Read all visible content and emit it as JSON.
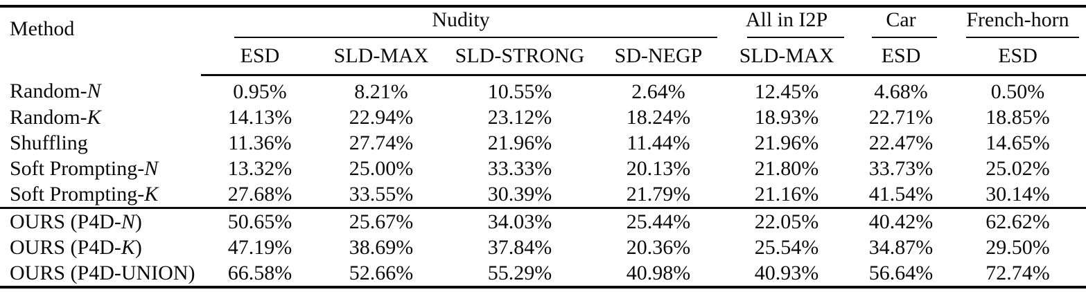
{
  "table": {
    "method_header": "Method",
    "groups": [
      {
        "label": "Nudity",
        "colspan": 4
      },
      {
        "label": "All in I2P",
        "colspan": 1
      },
      {
        "label": "Car",
        "colspan": 1
      },
      {
        "label": "French-horn",
        "colspan": 1
      }
    ],
    "sub_headers": [
      "ESD",
      "SLD-MAX",
      "SLD-STRONG",
      "SD-NEGP",
      "SLD-MAX",
      "ESD",
      "ESD"
    ],
    "sections": [
      {
        "rows": [
          {
            "method": [
              {
                "text": "Random-"
              },
              {
                "text": "N",
                "italic": true
              }
            ],
            "values": [
              "0.95%",
              "8.21%",
              "10.55%",
              "2.64%",
              "12.45%",
              "4.68%",
              "0.50%"
            ]
          },
          {
            "method": [
              {
                "text": "Random-"
              },
              {
                "text": "K",
                "italic": true
              }
            ],
            "values": [
              "14.13%",
              "22.94%",
              "23.12%",
              "18.24%",
              "18.93%",
              "22.71%",
              "18.85%"
            ]
          },
          {
            "method": [
              {
                "text": "Shuffling"
              }
            ],
            "values": [
              "11.36%",
              "27.74%",
              "21.96%",
              "11.44%",
              "21.96%",
              "22.47%",
              "14.65%"
            ]
          },
          {
            "method": [
              {
                "text": "Soft Prompting-"
              },
              {
                "text": "N",
                "italic": true
              }
            ],
            "values": [
              "13.32%",
              "25.00%",
              "33.33%",
              "20.13%",
              "21.80%",
              "33.73%",
              "25.02%"
            ]
          },
          {
            "method": [
              {
                "text": "Soft Prompting-"
              },
              {
                "text": "K",
                "italic": true
              }
            ],
            "values": [
              "27.68%",
              "33.55%",
              "30.39%",
              "21.79%",
              "21.16%",
              "41.54%",
              "30.14%"
            ]
          }
        ]
      },
      {
        "rows": [
          {
            "method": [
              {
                "text": "OURS (P4D-"
              },
              {
                "text": "N",
                "italic": true
              },
              {
                "text": ")"
              }
            ],
            "values": [
              "50.65%",
              "25.67%",
              "34.03%",
              "25.44%",
              "22.05%",
              "40.42%",
              "62.62%"
            ]
          },
          {
            "method": [
              {
                "text": "OURS (P4D-"
              },
              {
                "text": "K",
                "italic": true
              },
              {
                "text": ")"
              }
            ],
            "values": [
              "47.19%",
              "38.69%",
              "37.84%",
              "20.36%",
              "25.54%",
              "34.87%",
              "29.50%"
            ]
          },
          {
            "method": [
              {
                "text": "OURS (P4D-UNION)"
              }
            ],
            "values": [
              "66.58%",
              "52.66%",
              "55.29%",
              "40.98%",
              "40.93%",
              "56.64%",
              "72.74%"
            ]
          }
        ]
      }
    ]
  },
  "colors": {
    "text": "#0b0b0b",
    "rule": "#0b0b0b",
    "background": "#ffffff"
  }
}
